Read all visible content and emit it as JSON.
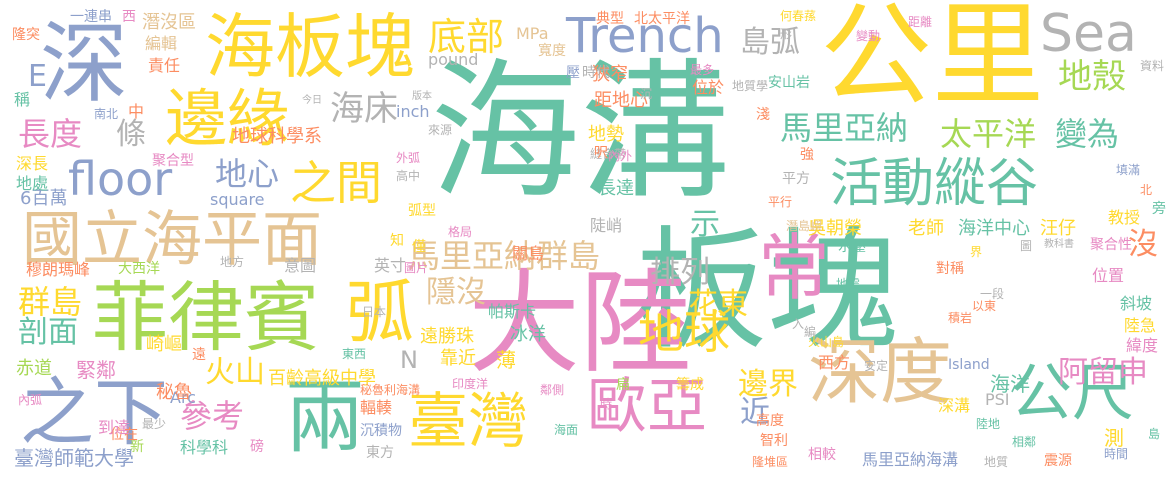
{
  "colors": {
    "teal": "#66c2a5",
    "pink": "#e78ac3",
    "tan": "#e5c494",
    "yellow": "#ffd92f",
    "blue": "#8da0cb",
    "green": "#a6d854",
    "orange": "#fc8d62",
    "gray": "#b3b3b3"
  },
  "words": [
    {
      "text": "海溝",
      "color": "teal"
    },
    {
      "text": "板塊",
      "color": "teal"
    },
    {
      "text": "公里",
      "color": "yellow"
    },
    {
      "text": "大陸",
      "color": "pink"
    },
    {
      "text": "深",
      "color": "blue"
    },
    {
      "text": "海板塊",
      "color": "yellow"
    },
    {
      "text": "菲律賓",
      "color": "green"
    },
    {
      "text": "國立海平面",
      "color": "tan"
    },
    {
      "text": "邊緣",
      "color": "yellow"
    },
    {
      "text": "深度",
      "color": "tan"
    },
    {
      "text": "臺灣",
      "color": "yellow"
    },
    {
      "text": "歐亞",
      "color": "pink"
    },
    {
      "text": "兩",
      "color": "teal"
    },
    {
      "text": "之下",
      "color": "blue"
    },
    {
      "text": "常",
      "color": "pink"
    },
    {
      "text": "弧",
      "color": "yellow"
    },
    {
      "text": "Trench",
      "color": "blue"
    },
    {
      "text": "Sea",
      "color": "gray"
    },
    {
      "text": "活動縱谷",
      "color": "teal"
    },
    {
      "text": "公尺",
      "color": "teal"
    },
    {
      "text": "地球",
      "color": "yellow"
    },
    {
      "text": "之間",
      "color": "yellow"
    },
    {
      "text": "floor",
      "color": "blue"
    },
    {
      "text": "底部",
      "color": "yellow"
    },
    {
      "text": "海床",
      "color": "gray"
    },
    {
      "text": "馬里亞納",
      "color": "teal"
    },
    {
      "text": "太平洋",
      "color": "green"
    },
    {
      "text": "變為",
      "color": "teal"
    },
    {
      "text": "馬里亞納群島",
      "color": "tan"
    },
    {
      "text": "島弧",
      "color": "gray"
    },
    {
      "text": "地殼",
      "color": "green"
    },
    {
      "text": "長度",
      "color": "pink"
    },
    {
      "text": "地心",
      "color": "blue"
    },
    {
      "text": "排列",
      "color": "gray"
    },
    {
      "text": "隱沒",
      "color": "tan"
    },
    {
      "text": "花東",
      "color": "yellow"
    },
    {
      "text": "火山",
      "color": "yellow"
    },
    {
      "text": "參考",
      "color": "pink"
    },
    {
      "text": "邊界",
      "color": "yellow"
    },
    {
      "text": "近",
      "color": "blue"
    },
    {
      "text": "阿留申",
      "color": "pink"
    },
    {
      "text": "沒",
      "color": "orange"
    },
    {
      "text": "群島",
      "color": "yellow"
    },
    {
      "text": "剖面",
      "color": "teal"
    },
    {
      "text": "示",
      "color": "teal"
    },
    {
      "text": "條",
      "color": "gray"
    },
    {
      "text": "百齡高級中學",
      "color": "yellow"
    },
    {
      "text": "吳朝榮",
      "color": "yellow"
    },
    {
      "text": "老師",
      "color": "yellow"
    },
    {
      "text": "海洋中心",
      "color": "teal"
    },
    {
      "text": "汪仔",
      "color": "yellow"
    },
    {
      "text": "地球科學系",
      "color": "orange"
    },
    {
      "text": "臺灣師範大學",
      "color": "blue"
    },
    {
      "text": "馬里亞納海溝",
      "color": "blue"
    },
    {
      "text": "科學科",
      "color": "teal"
    },
    {
      "text": "海洋",
      "color": "teal"
    },
    {
      "text": "西方",
      "color": "orange"
    },
    {
      "text": "E",
      "color": "blue"
    },
    {
      "text": "N",
      "color": "gray"
    },
    {
      "text": "inch",
      "color": "blue"
    },
    {
      "text": "pound",
      "color": "gray"
    },
    {
      "text": "MPa",
      "color": "tan"
    },
    {
      "text": "square",
      "color": "blue"
    },
    {
      "text": "Arc",
      "color": "blue"
    },
    {
      "text": "Island",
      "color": "blue"
    },
    {
      "text": "PSI",
      "color": "gray"
    },
    {
      "text": "6百萬",
      "color": "blue"
    },
    {
      "text": "一連串",
      "color": "blue"
    },
    {
      "text": "潛沒區",
      "color": "tan"
    },
    {
      "text": "典型",
      "color": "orange"
    },
    {
      "text": "北太平洋",
      "color": "orange"
    },
    {
      "text": "寬度",
      "color": "tan"
    },
    {
      "text": "狹窄",
      "color": "orange"
    },
    {
      "text": "距地心",
      "color": "orange"
    },
    {
      "text": "地勢",
      "color": "yellow"
    },
    {
      "text": "長達",
      "color": "teal"
    },
    {
      "text": "陡峭",
      "color": "gray"
    },
    {
      "text": "關島",
      "color": "orange"
    },
    {
      "text": "帕斯卡",
      "color": "teal"
    },
    {
      "text": "冰洋",
      "color": "teal"
    },
    {
      "text": "遠勝珠",
      "color": "yellow"
    },
    {
      "text": "靠近",
      "color": "yellow"
    },
    {
      "text": "薄",
      "color": "yellow"
    },
    {
      "text": "輻輳",
      "color": "orange"
    },
    {
      "text": "秘魯",
      "color": "orange"
    },
    {
      "text": "緊鄰",
      "color": "pink"
    },
    {
      "text": "赤道",
      "color": "green"
    },
    {
      "text": "崎嶇",
      "color": "yellow"
    },
    {
      "text": "穆朗瑪峰",
      "color": "orange"
    },
    {
      "text": "大西洋",
      "color": "green"
    },
    {
      "text": "意圖",
      "color": "gray"
    },
    {
      "text": "英寸",
      "color": "gray"
    },
    {
      "text": "深長",
      "color": "yellow"
    },
    {
      "text": "地處",
      "color": "teal"
    },
    {
      "text": "聚合型",
      "color": "pink"
    },
    {
      "text": "隆突",
      "color": "orange"
    },
    {
      "text": "編輯",
      "color": "tan"
    },
    {
      "text": "責任",
      "color": "orange"
    },
    {
      "text": "稱",
      "color": "teal"
    },
    {
      "text": "中",
      "color": "orange"
    },
    {
      "text": "南北",
      "color": "blue"
    },
    {
      "text": "西",
      "color": "pink"
    },
    {
      "text": "位於",
      "color": "orange"
    },
    {
      "text": "最多",
      "color": "pink"
    },
    {
      "text": "壓",
      "color": "blue"
    },
    {
      "text": "時代",
      "color": "gray"
    },
    {
      "text": "沉",
      "color": "gray"
    },
    {
      "text": "地質學",
      "color": "gray"
    },
    {
      "text": "何春蓀",
      "color": "yellow"
    },
    {
      "text": "形",
      "color": "gray"
    },
    {
      "text": "安山岩",
      "color": "teal"
    },
    {
      "text": "變動",
      "color": "pink"
    },
    {
      "text": "距離",
      "color": "pink"
    },
    {
      "text": "資料",
      "color": "gray"
    },
    {
      "text": "淺",
      "color": "orange"
    },
    {
      "text": "強",
      "color": "orange"
    },
    {
      "text": "平方",
      "color": "gray"
    },
    {
      "text": "平行",
      "color": "orange"
    },
    {
      "text": "填滿",
      "color": "blue"
    },
    {
      "text": "北",
      "color": "orange"
    },
    {
      "text": "旁",
      "color": "teal"
    },
    {
      "text": "教授",
      "color": "yellow"
    },
    {
      "text": "聚合性",
      "color": "pink"
    },
    {
      "text": "圖",
      "color": "gray"
    },
    {
      "text": "教科書",
      "color": "gray"
    },
    {
      "text": "潛島嶼",
      "color": "tan"
    },
    {
      "text": "水壓",
      "color": "teal"
    },
    {
      "text": "界",
      "color": "yellow"
    },
    {
      "text": "對稱",
      "color": "orange"
    },
    {
      "text": "位置",
      "color": "pink"
    },
    {
      "text": "斜坡",
      "color": "teal"
    },
    {
      "text": "陸急",
      "color": "yellow"
    },
    {
      "text": "緯度",
      "color": "pink"
    },
    {
      "text": "地震",
      "color": "teal"
    },
    {
      "text": "一段",
      "color": "gray"
    },
    {
      "text": "以東",
      "color": "orange"
    },
    {
      "text": "入",
      "color": "gray"
    },
    {
      "text": "編",
      "color": "gray"
    },
    {
      "text": "火山島",
      "color": "yellow"
    },
    {
      "text": "積岩",
      "color": "orange"
    },
    {
      "text": "安定",
      "color": "gray"
    },
    {
      "text": "深溝",
      "color": "yellow"
    },
    {
      "text": "陸地",
      "color": "teal"
    },
    {
      "text": "相鄰",
      "color": "teal"
    },
    {
      "text": "測",
      "color": "yellow"
    },
    {
      "text": "島",
      "color": "teal"
    },
    {
      "text": "時間",
      "color": "blue"
    },
    {
      "text": "震源",
      "color": "orange"
    },
    {
      "text": "地質",
      "color": "gray"
    },
    {
      "text": "相較",
      "color": "pink"
    },
    {
      "text": "智利",
      "color": "orange"
    },
    {
      "text": "高度",
      "color": "orange"
    },
    {
      "text": "隆堆區",
      "color": "orange"
    },
    {
      "text": "籌成",
      "color": "yellow"
    },
    {
      "text": "扁",
      "color": "green"
    },
    {
      "text": "時",
      "color": "pink"
    },
    {
      "text": "海面",
      "color": "teal"
    },
    {
      "text": "東方",
      "color": "gray"
    },
    {
      "text": "沉積物",
      "color": "blue"
    },
    {
      "text": "印度洋",
      "color": "pink"
    },
    {
      "text": "秘魯利海溝",
      "color": "orange"
    },
    {
      "text": "鄰側",
      "color": "pink"
    },
    {
      "text": "東西",
      "color": "teal"
    },
    {
      "text": "最少",
      "color": "gray"
    },
    {
      "text": "新",
      "color": "green"
    },
    {
      "text": "位在",
      "color": "orange"
    },
    {
      "text": "到達",
      "color": "pink"
    },
    {
      "text": "磅",
      "color": "pink"
    },
    {
      "text": "內弧",
      "color": "pink"
    },
    {
      "text": "遠",
      "color": "orange"
    },
    {
      "text": "日本",
      "color": "gray"
    },
    {
      "text": "圖片",
      "color": "pink"
    },
    {
      "text": "地方",
      "color": "gray"
    },
    {
      "text": "知",
      "color": "yellow"
    },
    {
      "text": "僅",
      "color": "yellow"
    },
    {
      "text": "弧型",
      "color": "yellow"
    },
    {
      "text": "格局",
      "color": "pink"
    },
    {
      "text": "外弧",
      "color": "pink"
    },
    {
      "text": "高中",
      "color": "gray"
    },
    {
      "text": "縫合帶",
      "color": "gray"
    },
    {
      "text": "呎",
      "color": "orange"
    },
    {
      "text": "內外",
      "color": "pink"
    },
    {
      "text": "來源",
      "color": "gray"
    },
    {
      "text": "版本",
      "color": "gray"
    },
    {
      "text": "今日",
      "color": "gray"
    }
  ]
}
